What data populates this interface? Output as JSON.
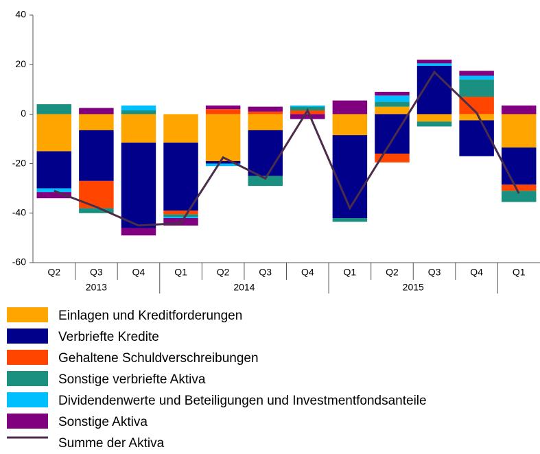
{
  "chart_data": {
    "type": "stacked-bar-line",
    "categories": [
      "Q2",
      "Q3",
      "Q4",
      "Q1",
      "Q2",
      "Q3",
      "Q4",
      "Q1",
      "Q2",
      "Q3",
      "Q4",
      "Q1"
    ],
    "years": [
      "2013",
      "2013",
      "2013",
      "2014",
      "2014",
      "2014",
      "2014",
      "2015",
      "2015",
      "2015",
      "2015",
      null
    ],
    "ylim": [
      -60,
      40
    ],
    "yticks": [
      -60,
      -40,
      -20,
      0,
      20,
      40
    ],
    "grid": false,
    "series": [
      {
        "name": "Einlagen und Kreditforderungen",
        "color": "#ffa500",
        "values": [
          -15,
          -6.5,
          -11.5,
          -11.5,
          -19,
          -6.5,
          0,
          -8.5,
          3,
          -3,
          -2.5,
          -13.5
        ]
      },
      {
        "name": "Verbriefte Kredite",
        "color": "#00008b",
        "values": [
          -15,
          -20.5,
          -34.5,
          -27.5,
          -1,
          -18.5,
          0,
          -33.5,
          -16,
          19.5,
          -14.5,
          -15
        ]
      },
      {
        "name": "Gehaltene Schuldverschreibungen",
        "color": "#ff4500",
        "values": [
          0,
          -11,
          0,
          -1.5,
          2,
          1,
          1.5,
          0,
          -3.5,
          0,
          7,
          -2.5
        ]
      },
      {
        "name": "Sonstige verbriefte Aktiva",
        "color": "#1a9080",
        "values": [
          4,
          -2,
          1.5,
          -1,
          0,
          -4,
          1.5,
          -1.5,
          2,
          -2,
          7,
          -4.5
        ]
      },
      {
        "name": "Dividendenwerte und Beteiligungen und Investmentfondsanteile",
        "color": "#00bfff",
        "values": [
          -1.5,
          0,
          2,
          -0.5,
          -1,
          0,
          0.5,
          0,
          2.5,
          1,
          1.5,
          0
        ]
      },
      {
        "name": "Sonstige Aktiva",
        "color": "#800080",
        "values": [
          -2.5,
          2.5,
          -3,
          -3,
          1.5,
          2,
          -2,
          5.5,
          1.5,
          1.5,
          2,
          3.5
        ]
      },
      {
        "name": "Summe der Aktiva",
        "color": "#4b2d4b",
        "type": "line",
        "values": [
          -31,
          -37.5,
          -45,
          -44,
          -17.5,
          -26,
          1.5,
          -38,
          -10.5,
          17,
          0.5,
          -32
        ]
      }
    ]
  }
}
